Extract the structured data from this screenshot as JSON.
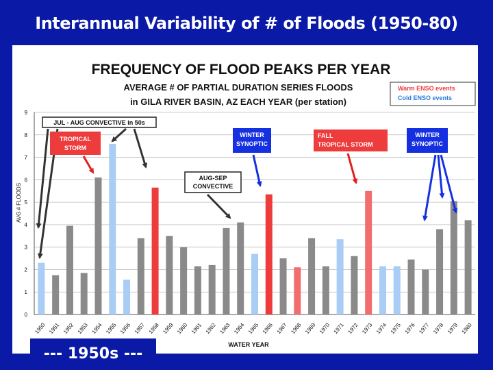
{
  "slide": {
    "title": "Interannual Variability of # of Floods (1950-80)",
    "footer": "--- 1950s ---"
  },
  "chart_data": {
    "type": "bar",
    "title": "FREQUENCY OF FLOOD PEAKS PER YEAR",
    "subtitle_line1": "AVERAGE # OF PARTIAL DURATION SERIES FLOODS",
    "subtitle_line2": "in GILA RIVER BASIN, AZ EACH YEAR (per station)",
    "xlabel": "WATER YEAR",
    "ylabel": "AVG # FLOODS",
    "ylim": [
      0,
      9
    ],
    "yticks": [
      0,
      1,
      2,
      3,
      4,
      5,
      6,
      7,
      8,
      9
    ],
    "grid": true,
    "categories": [
      "1950",
      "1951",
      "1952",
      "1953",
      "1954",
      "1955",
      "1956",
      "1957",
      "1958",
      "1959",
      "1960",
      "1961",
      "1962",
      "1963",
      "1964",
      "1965",
      "1966",
      "1967",
      "1968",
      "1969",
      "1970",
      "1971",
      "1972",
      "1973",
      "1974",
      "1975",
      "1976",
      "1977",
      "1978",
      "1979",
      "1980"
    ],
    "values": [
      2.3,
      1.75,
      3.95,
      1.85,
      6.1,
      7.6,
      1.55,
      3.4,
      5.65,
      3.5,
      3.0,
      2.15,
      2.2,
      3.85,
      4.1,
      2.7,
      5.35,
      2.5,
      2.1,
      3.4,
      2.15,
      3.35,
      2.6,
      5.5,
      2.15,
      2.15,
      2.45,
      2.0,
      3.8,
      5.05,
      4.2
    ],
    "enso": [
      "cold",
      "neutral",
      "neutral",
      "neutral",
      "neutral",
      "cold",
      "cold",
      "neutral",
      "warm",
      "neutral",
      "neutral",
      "neutral",
      "neutral",
      "neutral",
      "neutral",
      "cold",
      "warm",
      "neutral",
      "warm",
      "neutral",
      "neutral",
      "cold",
      "neutral",
      "warm",
      "cold",
      "cold",
      "neutral",
      "neutral",
      "neutral",
      "neutral",
      "neutral"
    ],
    "colors": {
      "warm": "#f26d6d",
      "cold": "#a9cdf5",
      "neutral": "#8a8a8a",
      "warm_dark": "#ee3b3b",
      "arrow_dark": "#333333",
      "arrow_red": "#e02020",
      "arrow_blue": "#1530e0"
    },
    "legend": {
      "position": "top-right",
      "warm_label": "Warm ENSO events",
      "cold_label": "Cold ENSO events"
    },
    "annotations": {
      "jul_aug": "JUL - AUG CONVECTIVE in 50s",
      "tropical_storm_1": "TROPICAL",
      "tropical_storm_2": "STORM",
      "aug_sep_1": "AUG-SEP",
      "aug_sep_2": "CONVECTIVE",
      "winter1_1": "WINTER",
      "winter1_2": "SYNOPTIC",
      "fall_1": "FALL",
      "fall_2": "TROPICAL STORM",
      "winter2_1": "WINTER",
      "winter2_2": "SYNOPTIC"
    }
  }
}
